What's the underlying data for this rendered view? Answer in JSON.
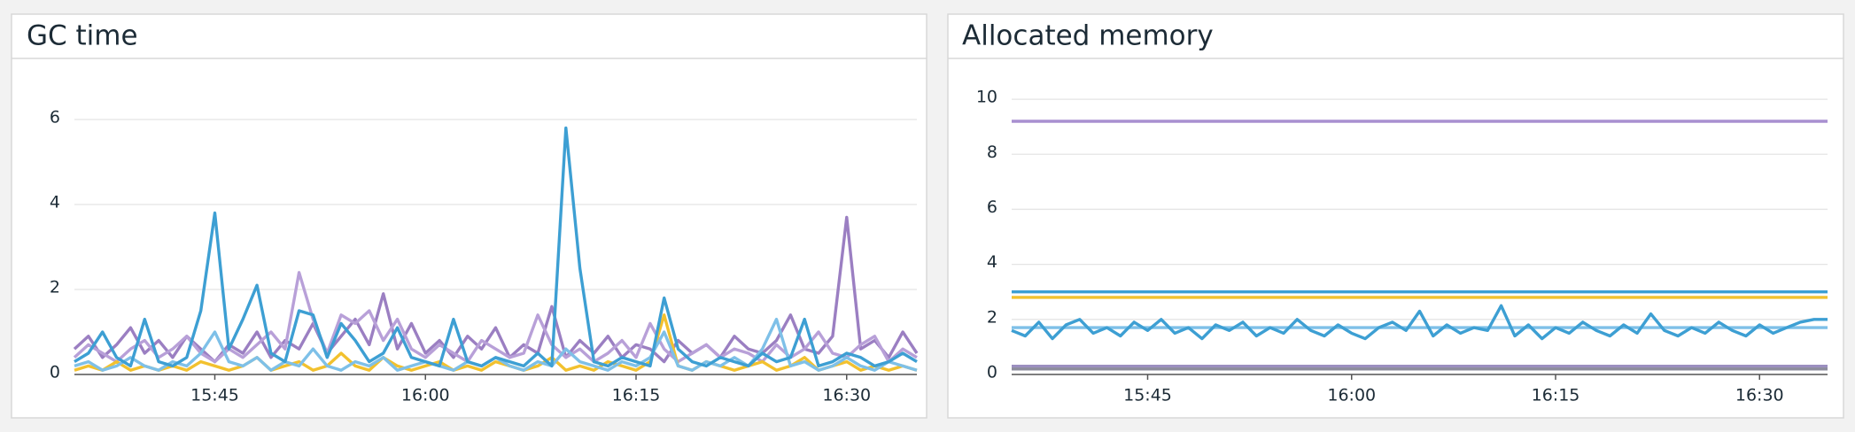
{
  "chart_data": [
    {
      "type": "line",
      "title": "GC time",
      "x": [
        "15:35",
        "15:36",
        "15:37",
        "15:38",
        "15:39",
        "15:40",
        "15:41",
        "15:42",
        "15:43",
        "15:44",
        "15:45",
        "15:46",
        "15:47",
        "15:48",
        "15:49",
        "15:50",
        "15:51",
        "15:52",
        "15:53",
        "15:54",
        "15:55",
        "15:56",
        "15:57",
        "15:58",
        "15:59",
        "16:00",
        "16:01",
        "16:02",
        "16:03",
        "16:04",
        "16:05",
        "16:06",
        "16:07",
        "16:08",
        "16:09",
        "16:10",
        "16:11",
        "16:12",
        "16:13",
        "16:14",
        "16:15",
        "16:16",
        "16:17",
        "16:18",
        "16:19",
        "16:20",
        "16:21",
        "16:22",
        "16:23",
        "16:24",
        "16:25",
        "16:26",
        "16:27",
        "16:28",
        "16:29",
        "16:30",
        "16:31",
        "16:32",
        "16:33",
        "16:34",
        "16:35"
      ],
      "xlim": [
        "15:35",
        "16:35"
      ],
      "xticks": [
        "15:45",
        "16:00",
        "16:15",
        "16:30"
      ],
      "ylim": [
        0,
        7
      ],
      "yticks": [
        0,
        2,
        4,
        6
      ],
      "grid": true,
      "series": [
        {
          "color": "#9b7fc2",
          "values": [
            0.6,
            0.9,
            0.4,
            0.7,
            1.1,
            0.5,
            0.8,
            0.4,
            0.9,
            0.6,
            0.3,
            0.7,
            0.5,
            1.0,
            0.4,
            0.8,
            0.6,
            1.2,
            0.5,
            0.9,
            1.3,
            0.7,
            1.9,
            0.6,
            1.2,
            0.5,
            0.8,
            0.4,
            0.9,
            0.6,
            1.1,
            0.4,
            0.7,
            0.5,
            1.6,
            0.4,
            0.8,
            0.5,
            0.9,
            0.4,
            0.7,
            0.6,
            0.3,
            0.8,
            0.5,
            0.7,
            0.4,
            0.9,
            0.6,
            0.5,
            0.8,
            1.4,
            0.6,
            0.5,
            0.9,
            3.7,
            0.6,
            0.8,
            0.4,
            1.0,
            0.5
          ]
        },
        {
          "color": "#b8a0d8",
          "values": [
            0.4,
            0.7,
            0.5,
            0.3,
            0.6,
            0.8,
            0.4,
            0.6,
            0.9,
            0.5,
            0.3,
            0.6,
            0.4,
            0.7,
            1.0,
            0.6,
            2.4,
            1.3,
            0.5,
            1.4,
            1.2,
            1.5,
            0.8,
            1.3,
            0.6,
            0.4,
            0.7,
            0.5,
            0.3,
            0.8,
            0.6,
            0.4,
            0.5,
            1.4,
            0.7,
            0.4,
            0.6,
            0.3,
            0.5,
            0.8,
            0.4,
            1.2,
            0.6,
            0.3,
            0.5,
            0.7,
            0.4,
            0.6,
            0.5,
            0.3,
            0.7,
            0.4,
            0.6,
            1.0,
            0.5,
            0.4,
            0.7,
            0.9,
            0.3,
            0.6,
            0.4
          ]
        },
        {
          "color": "#f2c12e",
          "values": [
            0.1,
            0.2,
            0.1,
            0.3,
            0.1,
            0.2,
            0.1,
            0.2,
            0.1,
            0.3,
            0.2,
            0.1,
            0.2,
            0.4,
            0.1,
            0.2,
            0.3,
            0.1,
            0.2,
            0.5,
            0.2,
            0.1,
            0.4,
            0.2,
            0.1,
            0.2,
            0.3,
            0.1,
            0.2,
            0.1,
            0.3,
            0.2,
            0.1,
            0.2,
            0.4,
            0.1,
            0.2,
            0.1,
            0.3,
            0.2,
            0.1,
            0.3,
            1.4,
            0.2,
            0.1,
            0.3,
            0.2,
            0.1,
            0.2,
            0.3,
            0.1,
            0.2,
            0.4,
            0.1,
            0.2,
            0.3,
            0.1,
            0.2,
            0.1,
            0.2,
            0.1
          ]
        },
        {
          "color": "#7ec0e8",
          "values": [
            0.2,
            0.3,
            0.1,
            0.2,
            0.4,
            0.2,
            0.1,
            0.3,
            0.2,
            0.5,
            1.0,
            0.3,
            0.2,
            0.4,
            0.1,
            0.3,
            0.2,
            0.6,
            0.2,
            0.1,
            0.3,
            0.2,
            0.4,
            0.1,
            0.2,
            0.3,
            0.2,
            0.1,
            0.3,
            0.2,
            0.4,
            0.2,
            0.1,
            0.3,
            0.2,
            0.6,
            0.3,
            0.2,
            0.1,
            0.3,
            0.2,
            0.4,
            1.0,
            0.2,
            0.1,
            0.3,
            0.2,
            0.4,
            0.2,
            0.6,
            1.3,
            0.2,
            0.3,
            0.1,
            0.2,
            0.4,
            0.2,
            0.1,
            0.3,
            0.2,
            0.1
          ]
        },
        {
          "color": "#3d9fd3",
          "values": [
            0.3,
            0.5,
            1.0,
            0.4,
            0.2,
            1.3,
            0.3,
            0.2,
            0.4,
            1.5,
            3.8,
            0.6,
            1.3,
            2.1,
            0.5,
            0.3,
            1.5,
            1.4,
            0.4,
            1.2,
            0.8,
            0.3,
            0.5,
            1.1,
            0.4,
            0.3,
            0.2,
            1.3,
            0.3,
            0.2,
            0.4,
            0.3,
            0.2,
            0.5,
            0.2,
            5.8,
            2.5,
            0.3,
            0.2,
            0.4,
            0.3,
            0.2,
            1.8,
            0.6,
            0.3,
            0.2,
            0.4,
            0.3,
            0.2,
            0.5,
            0.3,
            0.4,
            1.3,
            0.2,
            0.3,
            0.5,
            0.4,
            0.2,
            0.3,
            0.5,
            0.3
          ]
        }
      ]
    },
    {
      "type": "line",
      "title": "Allocated memory",
      "x": [
        "15:35",
        "15:36",
        "15:37",
        "15:38",
        "15:39",
        "15:40",
        "15:41",
        "15:42",
        "15:43",
        "15:44",
        "15:45",
        "15:46",
        "15:47",
        "15:48",
        "15:49",
        "15:50",
        "15:51",
        "15:52",
        "15:53",
        "15:54",
        "15:55",
        "15:56",
        "15:57",
        "15:58",
        "15:59",
        "16:00",
        "16:01",
        "16:02",
        "16:03",
        "16:04",
        "16:05",
        "16:06",
        "16:07",
        "16:08",
        "16:09",
        "16:10",
        "16:11",
        "16:12",
        "16:13",
        "16:14",
        "16:15",
        "16:16",
        "16:17",
        "16:18",
        "16:19",
        "16:20",
        "16:21",
        "16:22",
        "16:23",
        "16:24",
        "16:25",
        "16:26",
        "16:27",
        "16:28",
        "16:29",
        "16:30",
        "16:31",
        "16:32",
        "16:33",
        "16:34",
        "16:35"
      ],
      "xlim": [
        "15:35",
        "16:35"
      ],
      "xticks": [
        "15:45",
        "16:00",
        "16:15",
        "16:30"
      ],
      "ylim": [
        0,
        11
      ],
      "yticks": [
        0,
        2,
        4,
        6,
        8,
        10
      ],
      "grid": true,
      "series": [
        {
          "color": "#a88fd0",
          "values": [
            9.2,
            9.2,
            9.2,
            9.2,
            9.2,
            9.2,
            9.2,
            9.2,
            9.2,
            9.2,
            9.2,
            9.2,
            9.2,
            9.2,
            9.2,
            9.2,
            9.2,
            9.2,
            9.2,
            9.2,
            9.2,
            9.2,
            9.2,
            9.2,
            9.2,
            9.2,
            9.2,
            9.2,
            9.2,
            9.2,
            9.2,
            9.2,
            9.2,
            9.2,
            9.2,
            9.2,
            9.2,
            9.2,
            9.2,
            9.2,
            9.2,
            9.2,
            9.2,
            9.2,
            9.2,
            9.2,
            9.2,
            9.2,
            9.2,
            9.2,
            9.2,
            9.2,
            9.2,
            9.2,
            9.2,
            9.2,
            9.2,
            9.2,
            9.2,
            9.2,
            9.2
          ]
        },
        {
          "color": "#3d9fd3",
          "values": [
            3.0,
            3.0,
            3.0,
            3.0,
            3.0,
            3.0,
            3.0,
            3.0,
            3.0,
            3.0,
            3.0,
            3.0,
            3.0,
            3.0,
            3.0,
            3.0,
            3.0,
            3.0,
            3.0,
            3.0,
            3.0,
            3.0,
            3.0,
            3.0,
            3.0,
            3.0,
            3.0,
            3.0,
            3.0,
            3.0,
            3.0,
            3.0,
            3.0,
            3.0,
            3.0,
            3.0,
            3.0,
            3.0,
            3.0,
            3.0,
            3.0,
            3.0,
            3.0,
            3.0,
            3.0,
            3.0,
            3.0,
            3.0,
            3.0,
            3.0,
            3.0,
            3.0,
            3.0,
            3.0,
            3.0,
            3.0,
            3.0,
            3.0,
            3.0,
            3.0,
            3.0
          ]
        },
        {
          "color": "#f2c12e",
          "values": [
            2.8,
            2.8,
            2.8,
            2.8,
            2.8,
            2.8,
            2.8,
            2.8,
            2.8,
            2.8,
            2.8,
            2.8,
            2.8,
            2.8,
            2.8,
            2.8,
            2.8,
            2.8,
            2.8,
            2.8,
            2.8,
            2.8,
            2.8,
            2.8,
            2.8,
            2.8,
            2.8,
            2.8,
            2.8,
            2.8,
            2.8,
            2.8,
            2.8,
            2.8,
            2.8,
            2.8,
            2.8,
            2.8,
            2.8,
            2.8,
            2.8,
            2.8,
            2.8,
            2.8,
            2.8,
            2.8,
            2.8,
            2.8,
            2.8,
            2.8,
            2.8,
            2.8,
            2.8,
            2.8,
            2.8,
            2.8,
            2.8,
            2.8,
            2.8,
            2.8,
            2.8
          ]
        },
        {
          "color": "#7ec0e8",
          "values": [
            1.7,
            1.7,
            1.7,
            1.7,
            1.7,
            1.7,
            1.7,
            1.7,
            1.7,
            1.7,
            1.7,
            1.7,
            1.7,
            1.7,
            1.7,
            1.7,
            1.7,
            1.7,
            1.7,
            1.7,
            1.7,
            1.7,
            1.7,
            1.7,
            1.7,
            1.7,
            1.7,
            1.7,
            1.7,
            1.7,
            1.7,
            1.7,
            1.7,
            1.7,
            1.7,
            1.7,
            1.7,
            1.7,
            1.7,
            1.7,
            1.7,
            1.7,
            1.7,
            1.7,
            1.7,
            1.7,
            1.7,
            1.7,
            1.7,
            1.7,
            1.7,
            1.7,
            1.7,
            1.7,
            1.7,
            1.7,
            1.7,
            1.7,
            1.7,
            1.7,
            1.7
          ]
        },
        {
          "color": "#3d9fd3",
          "values": [
            1.6,
            1.4,
            1.9,
            1.3,
            1.8,
            2.0,
            1.5,
            1.7,
            1.4,
            1.9,
            1.6,
            2.0,
            1.5,
            1.7,
            1.3,
            1.8,
            1.6,
            1.9,
            1.4,
            1.7,
            1.5,
            2.0,
            1.6,
            1.4,
            1.8,
            1.5,
            1.3,
            1.7,
            1.9,
            1.6,
            2.3,
            1.4,
            1.8,
            1.5,
            1.7,
            1.6,
            2.5,
            1.4,
            1.8,
            1.3,
            1.7,
            1.5,
            1.9,
            1.6,
            1.4,
            1.8,
            1.5,
            2.2,
            1.6,
            1.4,
            1.7,
            1.5,
            1.9,
            1.6,
            1.4,
            1.8,
            1.5,
            1.7,
            1.9,
            2.0,
            2.0
          ]
        },
        {
          "color": "#9b8fc0",
          "values": [
            0.3,
            0.3,
            0.3,
            0.3,
            0.3,
            0.3,
            0.3,
            0.3,
            0.3,
            0.3,
            0.3,
            0.3,
            0.3,
            0.3,
            0.3,
            0.3,
            0.3,
            0.3,
            0.3,
            0.3,
            0.3,
            0.3,
            0.3,
            0.3,
            0.3,
            0.3,
            0.3,
            0.3,
            0.3,
            0.3,
            0.3,
            0.3,
            0.3,
            0.3,
            0.3,
            0.3,
            0.3,
            0.3,
            0.3,
            0.3,
            0.3,
            0.3,
            0.3,
            0.3,
            0.3,
            0.3,
            0.3,
            0.3,
            0.3,
            0.3,
            0.3,
            0.3,
            0.3,
            0.3,
            0.3,
            0.3,
            0.3,
            0.3,
            0.3,
            0.3,
            0.3
          ]
        },
        {
          "color": "#8c8c9c",
          "values": [
            0.2,
            0.2,
            0.2,
            0.2,
            0.2,
            0.2,
            0.2,
            0.2,
            0.2,
            0.2,
            0.2,
            0.2,
            0.2,
            0.2,
            0.2,
            0.2,
            0.2,
            0.2,
            0.2,
            0.2,
            0.2,
            0.2,
            0.2,
            0.2,
            0.2,
            0.2,
            0.2,
            0.2,
            0.2,
            0.2,
            0.2,
            0.2,
            0.2,
            0.2,
            0.2,
            0.2,
            0.2,
            0.2,
            0.2,
            0.2,
            0.2,
            0.2,
            0.2,
            0.2,
            0.2,
            0.2,
            0.2,
            0.2,
            0.2,
            0.2,
            0.2,
            0.2,
            0.2,
            0.2,
            0.2,
            0.2,
            0.2,
            0.2,
            0.2,
            0.2,
            0.2
          ]
        }
      ]
    }
  ]
}
